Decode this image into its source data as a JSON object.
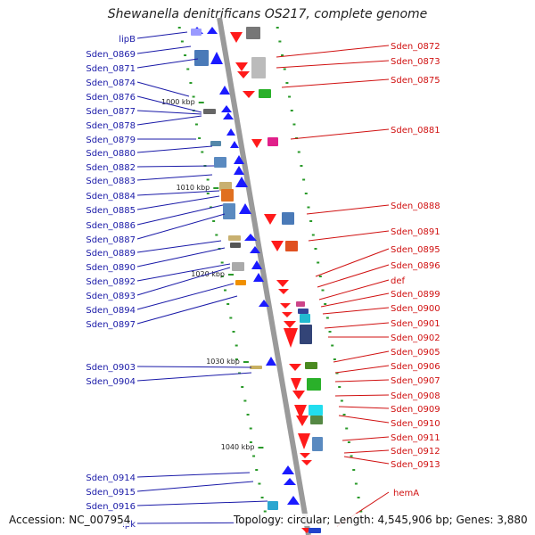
{
  "title": "Shewanella denitrificans OS217, complete genome",
  "footer": {
    "accession": "Accession: NC_007954",
    "topology": "Topology: circular; Length: 4,545,906 bp; Genes: 3,880"
  },
  "colors": {
    "forward": "#1a1aff",
    "reverse": "#ff1a1a",
    "left_label": "#1a1aa8",
    "right_label": "#d01010",
    "backbone": "#9a9a9a",
    "tick": "#2a9a2a"
  },
  "scale": [
    {
      "label": "1000 kbp"
    },
    {
      "label": "1010 kbp"
    },
    {
      "label": "1020 kbp"
    },
    {
      "label": "1030 kbp"
    },
    {
      "label": "1040 kbp"
    }
  ],
  "left_labels": [
    "lipB",
    "Sden_0869",
    "Sden_0871",
    "Sden_0874",
    "Sden_0876",
    "Sden_0877",
    "Sden_0878",
    "Sden_0879",
    "Sden_0880",
    "Sden_0882",
    "Sden_0883",
    "Sden_0884",
    "Sden_0885",
    "Sden_0886",
    "Sden_0887",
    "Sden_0889",
    "Sden_0890",
    "Sden_0892",
    "Sden_0893",
    "Sden_0894",
    "Sden_0897",
    "Sden_0903",
    "Sden_0904",
    "Sden_0914",
    "Sden_0915",
    "Sden_0916",
    "ipk"
  ],
  "right_labels": [
    "Sden_0872",
    "Sden_0873",
    "Sden_0875",
    "Sden_0881",
    "Sden_0888",
    "Sden_0891",
    "Sden_0895",
    "Sden_0896",
    "def",
    "Sden_0899",
    "Sden_0900",
    "Sden_0901",
    "Sden_0902",
    "Sden_0905",
    "Sden_0906",
    "Sden_0907",
    "Sden_0908",
    "Sden_0909",
    "Sden_0910",
    "Sden_0911",
    "Sden_0912",
    "Sden_0913",
    "hemA"
  ]
}
